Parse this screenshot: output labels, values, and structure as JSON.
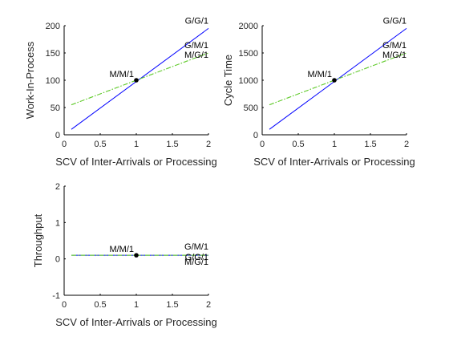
{
  "chart_data": [
    {
      "type": "line",
      "xlabel": "SCV of Inter-Arrivals or Processing",
      "ylabel": "Work-In-Process",
      "xlim": [
        0,
        2
      ],
      "ylim": [
        0,
        200
      ],
      "xticks": [
        0,
        0.5,
        1,
        1.5,
        2
      ],
      "yticks": [
        0,
        50,
        100,
        150,
        200
      ],
      "xtick_labels": [
        "0",
        "0.5",
        "1",
        "1.5",
        "2"
      ],
      "ytick_labels": [
        "0",
        "50",
        "100",
        "150",
        "200"
      ],
      "grid": false,
      "series": [
        {
          "x": [
            0.1,
            2.0
          ],
          "y": [
            10,
            195
          ],
          "color": "#0000ff",
          "style": "solid"
        },
        {
          "x": [
            0.1,
            2.0
          ],
          "y": [
            55,
            150
          ],
          "color": "#66cc33",
          "style": "dashdot"
        },
        {
          "x": [
            0.1,
            2.0
          ],
          "y": [
            55,
            150
          ],
          "color": "#66cc33",
          "style": "dashdot"
        }
      ],
      "point": {
        "x": 1,
        "y": 100,
        "color": "#000000"
      },
      "annotations": [
        {
          "text": "M/M/1",
          "x": 1,
          "y": 100,
          "align": "end"
        },
        {
          "text": "G/G/1",
          "x": 2,
          "y": 195,
          "align": "end"
        },
        {
          "text": "G/M/1",
          "x": 2,
          "y": 150,
          "align": "end"
        },
        {
          "text": "M/G/1",
          "x": 2,
          "y": 150,
          "align": "end"
        }
      ]
    },
    {
      "type": "line",
      "xlabel": "SCV of Inter-Arrivals or Processing",
      "ylabel": "Cycle Time",
      "xlim": [
        0,
        2
      ],
      "ylim": [
        0,
        2000
      ],
      "xticks": [
        0,
        0.5,
        1,
        1.5,
        2
      ],
      "yticks": [
        0,
        500,
        1000,
        1500,
        2000
      ],
      "xtick_labels": [
        "0",
        "0.5",
        "1",
        "1.5",
        "2"
      ],
      "ytick_labels": [
        "0",
        "500",
        "1000",
        "1500",
        "2000"
      ],
      "grid": false,
      "series": [
        {
          "x": [
            0.1,
            2.0
          ],
          "y": [
            100,
            1950
          ],
          "color": "#0000ff",
          "style": "solid"
        },
        {
          "x": [
            0.1,
            2.0
          ],
          "y": [
            550,
            1500
          ],
          "color": "#66cc33",
          "style": "dashdot"
        },
        {
          "x": [
            0.1,
            2.0
          ],
          "y": [
            550,
            1500
          ],
          "color": "#66cc33",
          "style": "dashdot"
        }
      ],
      "point": {
        "x": 1,
        "y": 1000,
        "color": "#000000"
      },
      "annotations": [
        {
          "text": "M/M/1",
          "x": 1,
          "y": 1000,
          "align": "end"
        },
        {
          "text": "G/G/1",
          "x": 2,
          "y": 1950,
          "align": "end"
        },
        {
          "text": "G/M/1",
          "x": 2,
          "y": 1500,
          "align": "end"
        },
        {
          "text": "M/G/1",
          "x": 2,
          "y": 1500,
          "align": "end"
        }
      ]
    },
    {
      "type": "line",
      "xlabel": "SCV of Inter-Arrivals or Processing",
      "ylabel": "Throughput",
      "xlim": [
        0,
        2
      ],
      "ylim": [
        -1,
        2
      ],
      "xticks": [
        0,
        0.5,
        1,
        1.5,
        2
      ],
      "yticks": [
        -1,
        0,
        1,
        2
      ],
      "xtick_labels": [
        "0",
        "0.5",
        "1",
        "1.5",
        "2"
      ],
      "ytick_labels": [
        "-1",
        "0",
        "1",
        "2"
      ],
      "grid": false,
      "series": [
        {
          "x": [
            0.1,
            2.0
          ],
          "y": [
            0.1,
            0.1
          ],
          "color": "#0000ff",
          "style": "solid"
        },
        {
          "x": [
            0.1,
            2.0
          ],
          "y": [
            0.1,
            0.1
          ],
          "color": "#66cc33",
          "style": "dashdot"
        },
        {
          "x": [
            0.1,
            2.0
          ],
          "y": [
            0.1,
            0.1
          ],
          "color": "#66cc33",
          "style": "dashdot"
        }
      ],
      "point": {
        "x": 1,
        "y": 0.1,
        "color": "#000000"
      },
      "annotations": [
        {
          "text": "M/M/1",
          "x": 1,
          "y": 0.1,
          "align": "end"
        },
        {
          "text": "G/M/1",
          "x": 2,
          "y": 0.1,
          "align": "end"
        },
        {
          "text": "G/G/1",
          "x": 2,
          "y": 0.1,
          "align": "end"
        },
        {
          "text": "M/G/1",
          "x": 2,
          "y": 0.1,
          "align": "end"
        }
      ]
    }
  ]
}
